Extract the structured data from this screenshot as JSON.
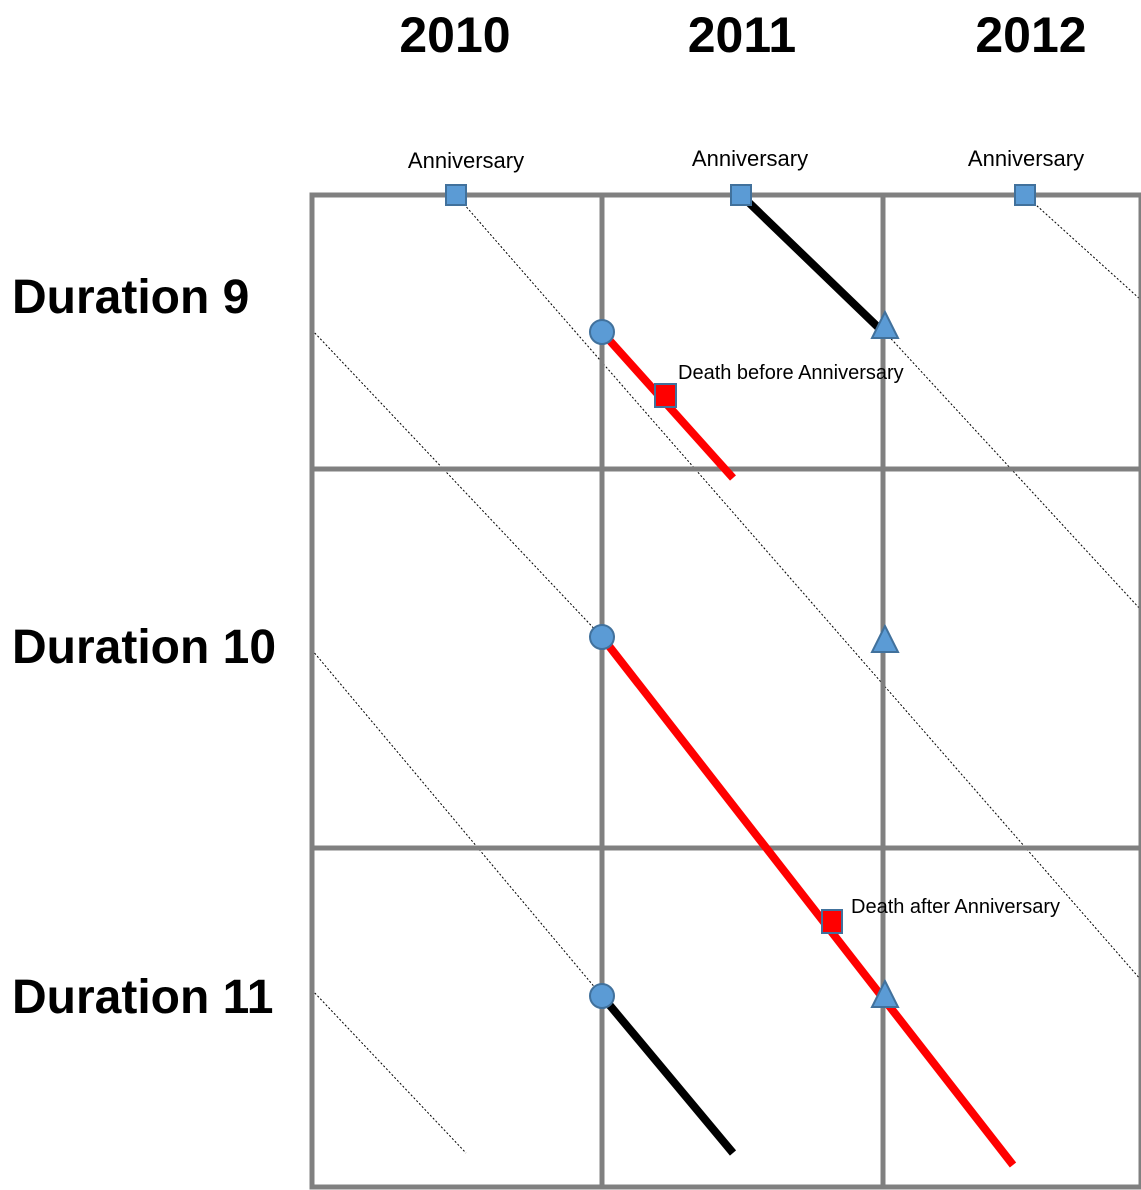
{
  "years": [
    "2010",
    "2011",
    "2012"
  ],
  "durations": [
    "Duration 9",
    "Duration 10",
    "Duration 11"
  ],
  "anniversary_labels": [
    "Anniversary",
    "Anniversary",
    "Anniversary"
  ],
  "annotations": {
    "death_before": "Death before Anniversary",
    "death_after": "Death after Anniversary"
  },
  "colors": {
    "grid": "#808080",
    "marker_fill": "#5B9BD5",
    "marker_stroke": "#41719C",
    "exposure_red": "#FF0000",
    "exposure_black": "#000000",
    "death_marker": "#FF0000"
  }
}
